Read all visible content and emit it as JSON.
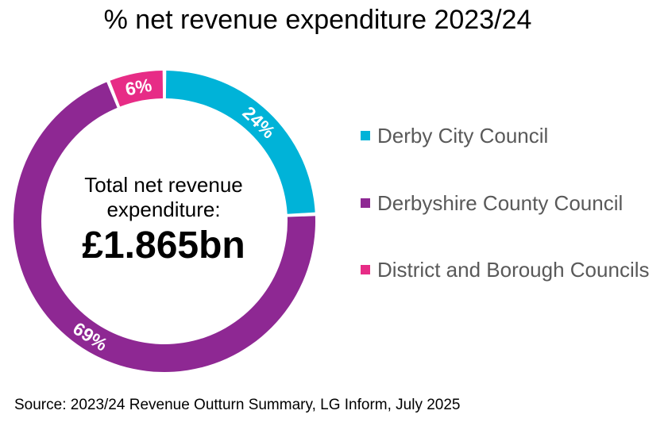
{
  "chart_data": {
    "type": "pie",
    "variant": "donut",
    "title": "% net revenue expenditure 2023/24",
    "categories": [
      "Derby City Council",
      "Derbyshire County Council",
      "District and Borough Councils"
    ],
    "values": [
      24,
      69,
      6
    ],
    "value_labels": [
      "24%",
      "69%",
      "6%"
    ],
    "colors": [
      "#00B3D8",
      "#8E2893",
      "#E72C86"
    ],
    "legend_placement": "right",
    "center_text": {
      "line1": "Total net revenue",
      "line2": "expenditure:",
      "value": "£1.865bn"
    },
    "source": "Source: 2023/24 Revenue Outturn Summary, LG Inform, July 2025"
  }
}
